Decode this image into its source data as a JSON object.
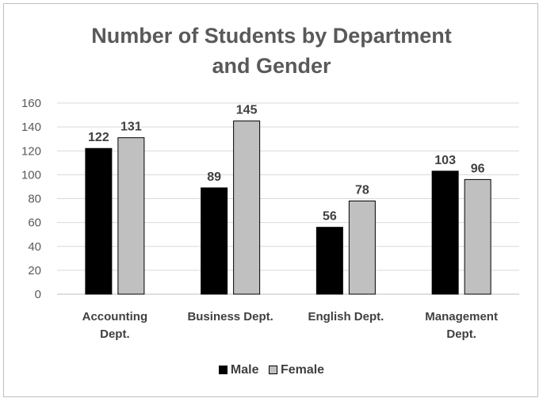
{
  "chart_data": {
    "type": "bar",
    "title_lines": [
      "Number of Students by Department",
      "and Gender"
    ],
    "categories": [
      [
        "Accounting",
        "Dept."
      ],
      [
        "Business Dept."
      ],
      [
        "English Dept."
      ],
      [
        "Management",
        "Dept."
      ]
    ],
    "series": [
      {
        "name": "Male",
        "values": [
          122,
          89,
          56,
          103
        ],
        "color": "#000000"
      },
      {
        "name": "Female",
        "values": [
          131,
          145,
          78,
          96
        ],
        "color": "#c0c0c0"
      }
    ],
    "ylim": [
      0,
      160
    ],
    "yticks": [
      0,
      20,
      40,
      60,
      80,
      100,
      120,
      140,
      160
    ],
    "grid": true,
    "legend_position": "bottom"
  }
}
